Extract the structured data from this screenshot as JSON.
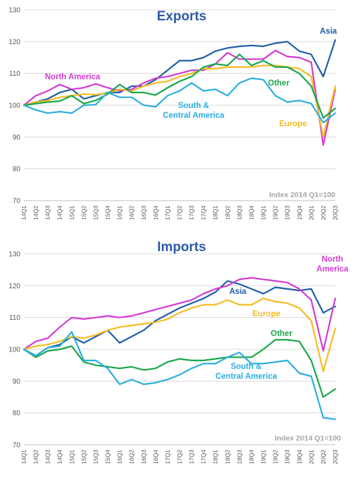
{
  "colors": {
    "Asia": "#1f5fa8",
    "North America": "#d43ad4",
    "Europe": "#f5bc23",
    "Other": "#1aa64a",
    "South & Central America": "#2baee0",
    "title": "#2e5aa8",
    "note": "#a6a6a6",
    "grid": "#d9d9d9"
  },
  "chart_data": [
    {
      "type": "line",
      "title": "Exports",
      "note": "Index 2014 Q1=100",
      "ylim": [
        70,
        130
      ],
      "yticks": [
        "70",
        "80",
        "90",
        "100",
        "110",
        "120",
        "130"
      ],
      "grid": true,
      "categories": [
        "14Q1",
        "14Q2",
        "14Q3",
        "14Q4",
        "15Q1",
        "15Q2",
        "15Q3",
        "15Q4",
        "16Q1",
        "16Q2",
        "16Q3",
        "16Q4",
        "17Q1",
        "17Q2",
        "17Q3",
        "17Q4",
        "18Q1",
        "18Q2",
        "18Q3",
        "18Q4",
        "19Q1",
        "19Q2",
        "19Q3",
        "19Q4",
        "20Q1",
        "20Q2",
        "20Q3"
      ],
      "series": [
        {
          "name": "Asia",
          "label_lines": [
            "Asia"
          ],
          "values": [
            100,
            101,
            102,
            104,
            105,
            102,
            103,
            104,
            104,
            106,
            106,
            108,
            111,
            114,
            114,
            115,
            117,
            118,
            118.5,
            118.8,
            118.5,
            119.5,
            120,
            117,
            116,
            109,
            120.5
          ]
        },
        {
          "name": "North America",
          "label_lines": [
            "North America"
          ],
          "values": [
            100,
            103,
            104.5,
            106.5,
            105,
            105.5,
            106.7,
            105.5,
            104.5,
            105,
            107,
            108.5,
            109,
            110,
            111,
            111,
            113,
            116.5,
            114.5,
            114.5,
            114.5,
            117.2,
            115.3,
            115,
            113.5,
            87.5,
            105
          ]
        },
        {
          "name": "Europe",
          "label_lines": [
            "Europe"
          ],
          "values": [
            100,
            101,
            101.5,
            102.5,
            103,
            103.5,
            103.3,
            103.8,
            105,
            104.5,
            106,
            107,
            107.5,
            109,
            110,
            111.5,
            111.5,
            112,
            112,
            112,
            112.5,
            112.5,
            112,
            111.5,
            109,
            90,
            106
          ]
        },
        {
          "name": "Other",
          "label_lines": [
            "Other"
          ],
          "values": [
            100,
            100.5,
            101,
            101.3,
            103,
            100.5,
            101.5,
            103.5,
            106.5,
            104,
            104,
            103.2,
            105.5,
            107.5,
            109,
            112,
            113,
            112.5,
            116,
            112.5,
            114,
            112,
            112,
            110,
            106,
            96,
            99
          ]
        },
        {
          "name": "South & Central America",
          "label_lines": [
            "South &",
            "Central America"
          ],
          "values": [
            100,
            98.5,
            97.5,
            98,
            97.5,
            100,
            100.2,
            104,
            102.5,
            102.5,
            100,
            99.5,
            103,
            104.5,
            107,
            104.5,
            105,
            103,
            107,
            108.5,
            108,
            103,
            101,
            101.5,
            100.5,
            94.5,
            97.5
          ]
        }
      ]
    },
    {
      "type": "line",
      "title": "Imports",
      "note": "Index 2014 Q1=100",
      "ylim": [
        70,
        130
      ],
      "yticks": [
        "70",
        "80",
        "90",
        "100",
        "110",
        "120",
        "130"
      ],
      "grid": true,
      "categories": [
        "14Q1",
        "14Q2",
        "14Q3",
        "14Q4",
        "15Q1",
        "15Q2",
        "15Q3",
        "15Q4",
        "16Q1",
        "16Q2",
        "16Q3",
        "16Q4",
        "17Q1",
        "17Q2",
        "17Q3",
        "17Q4",
        "18Q1",
        "18Q2",
        "18Q3",
        "18Q4",
        "19Q1",
        "19Q2",
        "19Q3",
        "19Q4",
        "20Q1",
        "20Q2",
        "20Q3"
      ],
      "series": [
        {
          "name": "Asia",
          "label_lines": [
            "Asia"
          ],
          "values": [
            100,
            98,
            100.5,
            101.5,
            104,
            102,
            104,
            106,
            102,
            104,
            106,
            109,
            111,
            113,
            114.5,
            116,
            118,
            121.5,
            120.5,
            119,
            117.5,
            119.5,
            119,
            118.5,
            119,
            111.5,
            113.5
          ]
        },
        {
          "name": "North America",
          "label_lines": [
            "North",
            "America"
          ],
          "values": [
            100,
            102.5,
            103.5,
            107,
            110,
            109.5,
            110,
            110.5,
            110,
            110.5,
            111.5,
            112.5,
            113.5,
            114.5,
            115.5,
            117.5,
            119,
            120,
            122,
            122.5,
            122,
            121.5,
            121,
            119,
            115.5,
            99.5,
            116
          ]
        },
        {
          "name": "Europe",
          "label_lines": [
            "Europe"
          ],
          "values": [
            100,
            101,
            101.5,
            102.5,
            104,
            103.5,
            104.5,
            106,
            107,
            107.5,
            108,
            108.5,
            109.5,
            111.5,
            113,
            114,
            114,
            115.5,
            114,
            114,
            116,
            115,
            114.5,
            113,
            109,
            93,
            106.5
          ]
        },
        {
          "name": "Other",
          "label_lines": [
            "Other"
          ],
          "values": [
            100,
            97.5,
            99.5,
            100,
            101,
            96,
            95,
            94.5,
            94,
            94.5,
            93.5,
            94,
            96,
            97,
            96.5,
            96.5,
            97,
            97.5,
            97.5,
            97.5,
            100,
            103,
            103,
            102.5,
            96.5,
            85,
            87.5
          ]
        },
        {
          "name": "South & Central America",
          "label_lines": [
            "South &",
            "Central America"
          ],
          "values": [
            100,
            98,
            100.5,
            101,
            105.5,
            96.5,
            96.5,
            94,
            89,
            90.5,
            89,
            89.5,
            90.5,
            92,
            94,
            95.5,
            95.5,
            97.5,
            99,
            95.5,
            95.5,
            96,
            96.5,
            92.5,
            91.5,
            78.5,
            78
          ]
        }
      ]
    }
  ]
}
